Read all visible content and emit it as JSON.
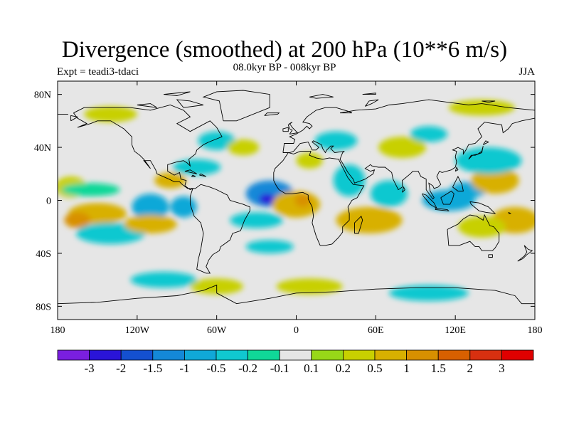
{
  "chart_data": {
    "type": "heatmap",
    "title": "Divergence (smoothed) at 200 hPa (10**6 m/s)",
    "subtitle": "08.0kyr BP - 008kyr BP",
    "left_label": "Expt = teadi3-tdaci",
    "right_label": "JJA",
    "x_range": [
      -180,
      180
    ],
    "y_range": [
      -90,
      90
    ],
    "x_ticks": [
      {
        "value": -180,
        "label": "180"
      },
      {
        "value": -120,
        "label": "120W"
      },
      {
        "value": -60,
        "label": "60W"
      },
      {
        "value": 0,
        "label": "0"
      },
      {
        "value": 60,
        "label": "60E"
      },
      {
        "value": 120,
        "label": "120E"
      },
      {
        "value": 180,
        "label": "180"
      }
    ],
    "y_ticks": [
      {
        "value": 80,
        "label": "80N"
      },
      {
        "value": 40,
        "label": "40N"
      },
      {
        "value": 0,
        "label": "0"
      },
      {
        "value": -40,
        "label": "40S"
      },
      {
        "value": -80,
        "label": "80S"
      }
    ],
    "colorbar": {
      "colors": [
        "#7a1fe0",
        "#2a14d8",
        "#1450d0",
        "#1488d8",
        "#10a8d8",
        "#10c8d0",
        "#10d898",
        "#e6e6e6",
        "#98d818",
        "#c8d000",
        "#d8b000",
        "#d89000",
        "#d86000",
        "#d83010",
        "#e00000"
      ],
      "levels": [
        "-3",
        "-2",
        "-1.5",
        "-1",
        "-0.5",
        "-0.2",
        "-0.1",
        "0.1",
        "0.2",
        "0.5",
        "1",
        "1.5",
        "2",
        "3"
      ]
    },
    "background_color": "#e6e6e6",
    "field_blobs": [
      {
        "lon": -170,
        "lat": 10,
        "rlon": 12,
        "rlat": 8,
        "v": 0.3
      },
      {
        "lon": -155,
        "lat": 8,
        "rlon": 22,
        "rlat": 5,
        "v": -0.15
      },
      {
        "lon": -150,
        "lat": -10,
        "rlon": 22,
        "rlat": 8,
        "v": 0.8
      },
      {
        "lon": -165,
        "lat": -15,
        "rlon": 10,
        "rlat": 6,
        "v": 1.1
      },
      {
        "lon": -140,
        "lat": -25,
        "rlon": 26,
        "rlat": 8,
        "v": -0.3
      },
      {
        "lon": -110,
        "lat": -5,
        "rlon": 14,
        "rlat": 10,
        "v": -0.6
      },
      {
        "lon": -110,
        "lat": -18,
        "rlon": 20,
        "rlat": 7,
        "v": 0.6
      },
      {
        "lon": -85,
        "lat": -5,
        "rlon": 10,
        "rlat": 8,
        "v": -0.9
      },
      {
        "lon": -95,
        "lat": 15,
        "rlon": 12,
        "rlat": 6,
        "v": 0.5
      },
      {
        "lon": -75,
        "lat": 25,
        "rlon": 18,
        "rlat": 6,
        "v": -0.3
      },
      {
        "lon": -60,
        "lat": 45,
        "rlon": 14,
        "rlat": 7,
        "v": -0.4
      },
      {
        "lon": -40,
        "lat": 40,
        "rlon": 12,
        "rlat": 6,
        "v": 0.3
      },
      {
        "lon": -20,
        "lat": 5,
        "rlon": 18,
        "rlat": 10,
        "v": -1.4
      },
      {
        "lon": -22,
        "lat": 1,
        "rlon": 6,
        "rlat": 4,
        "v": -2.2
      },
      {
        "lon": 0,
        "lat": -3,
        "rlon": 18,
        "rlat": 10,
        "v": 0.8
      },
      {
        "lon": 5,
        "lat": 0,
        "rlon": 6,
        "rlat": 5,
        "v": 1.2
      },
      {
        "lon": -30,
        "lat": -15,
        "rlon": 20,
        "rlat": 6,
        "v": -0.3
      },
      {
        "lon": -20,
        "lat": -35,
        "rlon": 18,
        "rlat": 5,
        "v": -0.3
      },
      {
        "lon": 10,
        "lat": 30,
        "rlon": 10,
        "rlat": 6,
        "v": 0.3
      },
      {
        "lon": 30,
        "lat": 45,
        "rlon": 16,
        "rlat": 7,
        "v": -0.4
      },
      {
        "lon": 40,
        "lat": 15,
        "rlon": 12,
        "rlat": 12,
        "v": -0.5
      },
      {
        "lon": 55,
        "lat": -15,
        "rlon": 25,
        "rlat": 10,
        "v": 0.5
      },
      {
        "lon": 70,
        "lat": 5,
        "rlon": 14,
        "rlat": 10,
        "v": -0.4
      },
      {
        "lon": 80,
        "lat": 40,
        "rlon": 18,
        "rlat": 8,
        "v": 0.4
      },
      {
        "lon": 100,
        "lat": 50,
        "rlon": 14,
        "rlat": 6,
        "v": -0.3
      },
      {
        "lon": 115,
        "lat": 0,
        "rlon": 20,
        "rlat": 8,
        "v": -0.7
      },
      {
        "lon": 130,
        "lat": 8,
        "rlon": 14,
        "rlat": 6,
        "v": -0.9
      },
      {
        "lon": 150,
        "lat": 15,
        "rlon": 18,
        "rlat": 10,
        "v": 0.6
      },
      {
        "lon": 145,
        "lat": 30,
        "rlon": 25,
        "rlat": 10,
        "v": -0.3
      },
      {
        "lon": 165,
        "lat": -15,
        "rlon": 18,
        "rlat": 10,
        "v": 0.5
      },
      {
        "lon": 140,
        "lat": -20,
        "rlon": 18,
        "rlat": 8,
        "v": 0.4
      },
      {
        "lon": -100,
        "lat": -60,
        "rlon": 25,
        "rlat": 6,
        "v": -0.3
      },
      {
        "lon": -60,
        "lat": -65,
        "rlon": 20,
        "rlat": 6,
        "v": 0.3
      },
      {
        "lon": 10,
        "lat": -65,
        "rlon": 25,
        "rlat": 6,
        "v": 0.3
      },
      {
        "lon": 100,
        "lat": -70,
        "rlon": 30,
        "rlat": 6,
        "v": -0.3
      },
      {
        "lon": -140,
        "lat": 65,
        "rlon": 20,
        "rlat": 6,
        "v": 0.3
      },
      {
        "lon": 140,
        "lat": 70,
        "rlon": 25,
        "rlat": 6,
        "v": 0.3
      }
    ]
  }
}
